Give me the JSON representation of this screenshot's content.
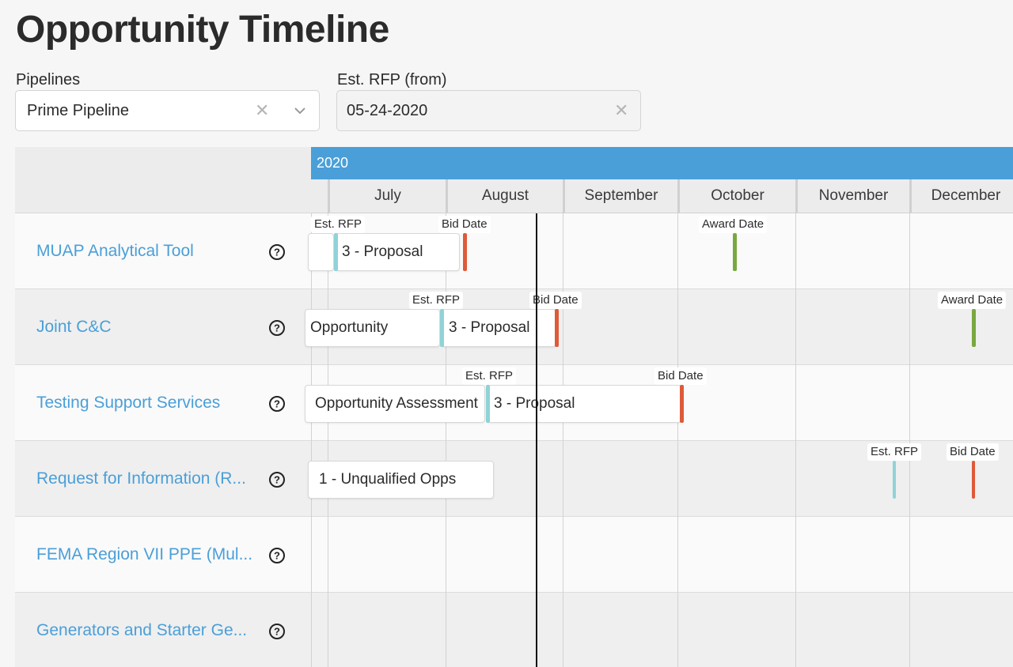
{
  "page": {
    "title": "Opportunity Timeline"
  },
  "filters": {
    "pipelines": {
      "label": "Pipelines",
      "value": "Prime Pipeline"
    },
    "est_rfp_from": {
      "label": "Est. RFP (from)",
      "value": "05-24-2020"
    }
  },
  "colors": {
    "accent": "#4a9fd8",
    "est_rfp": "#8fd3d7",
    "bid_date": "#de5a38",
    "award_date": "#79a83f"
  },
  "icons": {
    "clear": "close-icon",
    "dropdown": "chevron-down-icon",
    "help": "question-circle-icon"
  },
  "timeline": {
    "year": "2020",
    "months": [
      "July",
      "August",
      "September",
      "October",
      "November",
      "December"
    ],
    "marker_labels": {
      "est_rfp": "Est. RFP",
      "bid_date": "Bid Date",
      "award_date": "Award Date"
    }
  },
  "rows": [
    {
      "name": "MUAP Analytical Tool",
      "stages": [
        "3 - Proposal"
      ]
    },
    {
      "name": "Joint C&C",
      "stages": [
        "Opportunity",
        "3 - Proposal"
      ]
    },
    {
      "name": "Testing Support Services",
      "stages": [
        "Opportunity Assessment",
        "3 - Proposal"
      ]
    },
    {
      "name": "Request for Information (R...",
      "stages": [
        "1 - Unqualified Opps"
      ]
    },
    {
      "name": "FEMA Region VII PPE (Mul...",
      "stages": []
    },
    {
      "name": "Generators and Starter Ge...",
      "stages": []
    }
  ]
}
